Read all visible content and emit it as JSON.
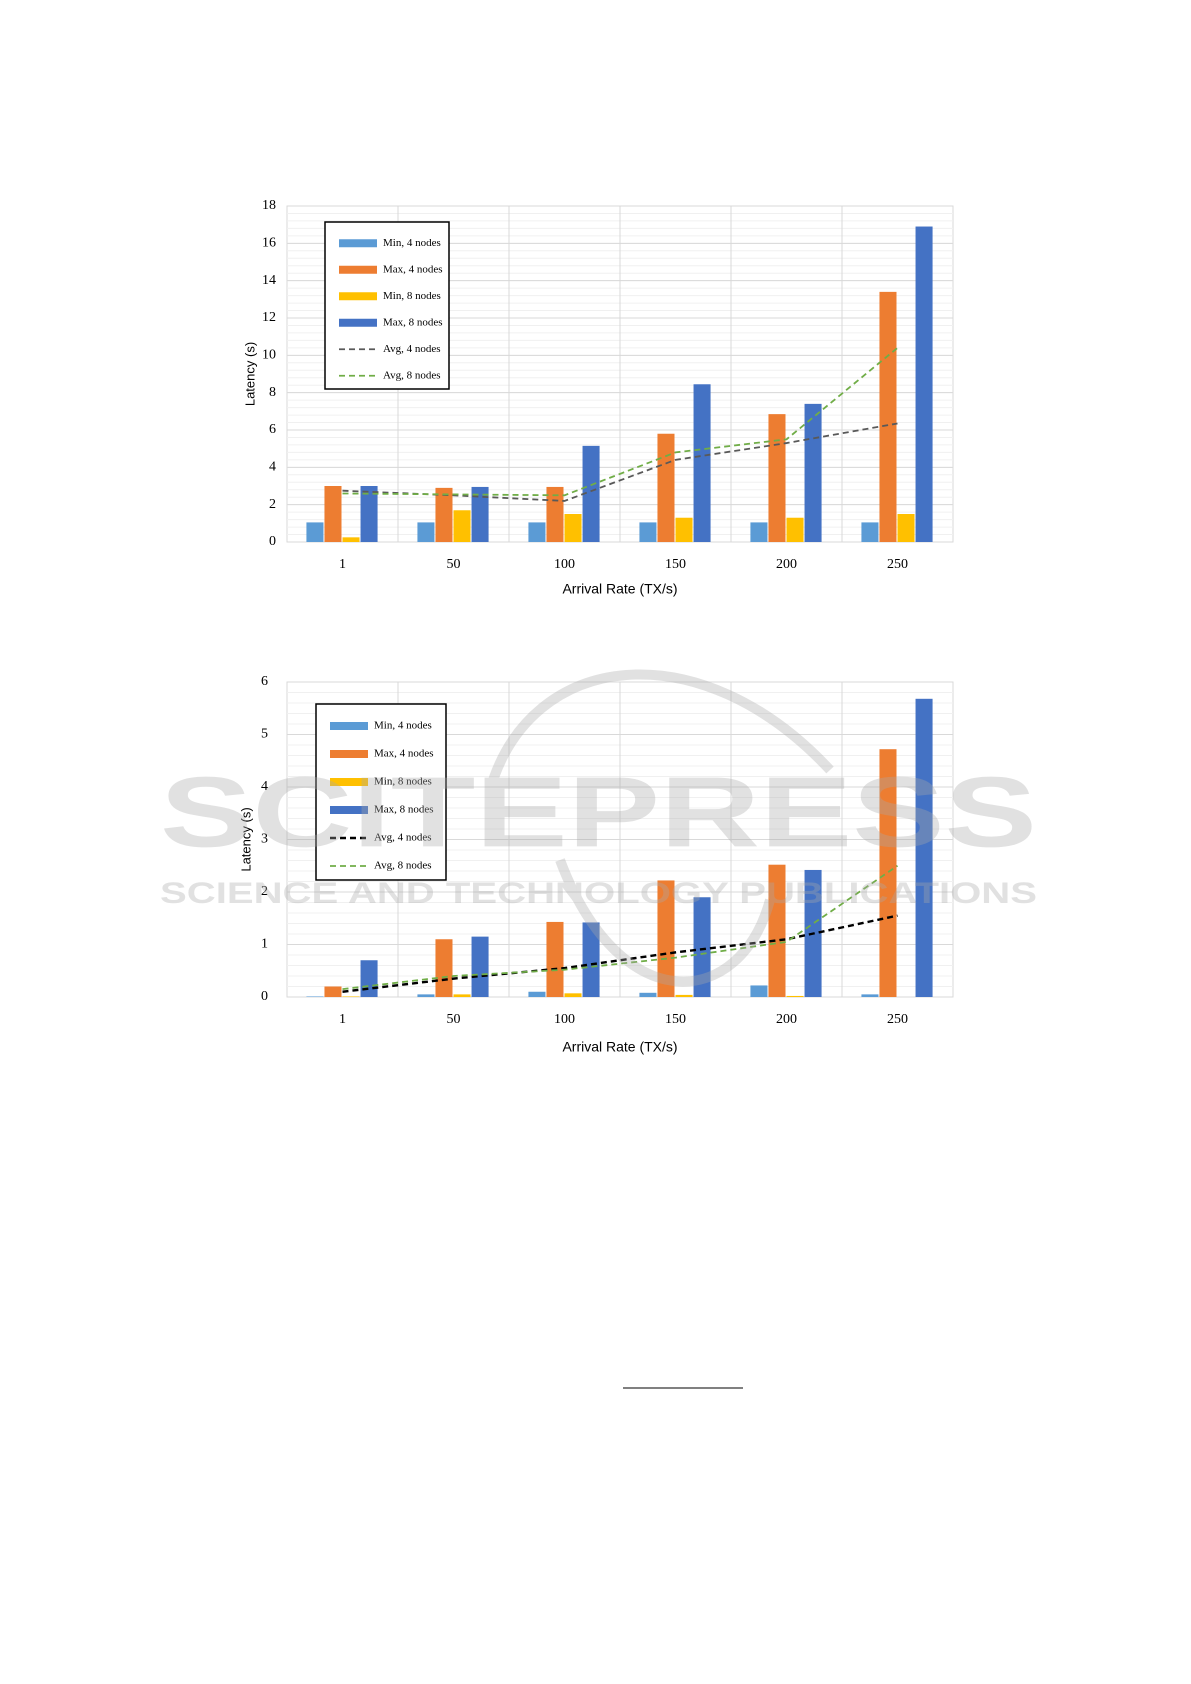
{
  "chart_data": [
    {
      "type": "bar",
      "x_label": "Arrival Rate (TX/s)",
      "y_label": "Latency (s)",
      "categories": [
        "1",
        "50",
        "100",
        "150",
        "200",
        "250"
      ],
      "ylim": [
        0,
        18
      ],
      "yticks": [
        0,
        2,
        4,
        6,
        8,
        10,
        12,
        14,
        16,
        18
      ],
      "grid": true,
      "legend": "upper left",
      "series": [
        {
          "name": "Min, 4 nodes",
          "color": "#5b9bd5",
          "values": [
            1.05,
            1.05,
            1.05,
            1.05,
            1.05,
            1.05
          ]
        },
        {
          "name": "Max, 4 nodes",
          "color": "#ed7d31",
          "values": [
            3,
            2.9,
            2.95,
            5.8,
            6.85,
            13.4
          ]
        },
        {
          "name": "Min, 8 nodes",
          "color": "#ffc000",
          "values": [
            0.25,
            1.7,
            1.5,
            1.3,
            1.3,
            1.5
          ]
        },
        {
          "name": "Max, 8 nodes",
          "color": "#4472c4",
          "values": [
            3,
            2.95,
            5.15,
            8.45,
            7.4,
            16.9
          ]
        },
        {
          "name": "Avg, 4 nodes",
          "color": "#595959",
          "type": "line",
          "values": [
            2.75,
            2.5,
            2.2,
            4.4,
            5.3,
            6.35
          ]
        },
        {
          "name": "Avg, 8 nodes",
          "color": "#70ad47",
          "type": "line",
          "values": [
            2.6,
            2.55,
            2.5,
            4.8,
            5.5,
            10.4
          ]
        }
      ]
    },
    {
      "type": "bar",
      "x_label": "Arrival Rate (TX/s)",
      "y_label": "Latency (s)",
      "categories": [
        "1",
        "50",
        "100",
        "150",
        "200",
        "250"
      ],
      "ylim": [
        0,
        6
      ],
      "yticks": [
        0,
        1,
        2,
        3,
        4,
        5,
        6
      ],
      "grid": true,
      "legend": "upper left",
      "series": [
        {
          "name": "Min, 4 nodes",
          "color": "#5b9bd5",
          "values": [
            0.01,
            0.05,
            0.1,
            0.08,
            0.22,
            0.05
          ]
        },
        {
          "name": "Max, 4 nodes",
          "color": "#ed7d31",
          "values": [
            0.2,
            1.1,
            1.43,
            2.22,
            2.52,
            4.72
          ]
        },
        {
          "name": "Min, 8 nodes",
          "color": "#ffc000",
          "values": [
            0.01,
            0.05,
            0.07,
            0.04,
            0.02,
            0
          ]
        },
        {
          "name": "Max, 8 nodes",
          "color": "#4472c4",
          "values": [
            0.7,
            1.15,
            1.42,
            1.9,
            2.42,
            5.68
          ]
        },
        {
          "name": "Avg, 4 nodes",
          "color": "#000000",
          "type": "line",
          "values": [
            0.1,
            0.35,
            0.55,
            0.85,
            1.1,
            1.55
          ]
        },
        {
          "name": "Avg, 8 nodes",
          "color": "#70ad47",
          "type": "line",
          "values": [
            0.15,
            0.4,
            0.52,
            0.75,
            1.05,
            2.5
          ]
        }
      ]
    }
  ],
  "watermark": {
    "title": "SCITEPRESS",
    "subtitle": "SCIENCE AND TECHNOLOGY PUBLICATIONS"
  }
}
